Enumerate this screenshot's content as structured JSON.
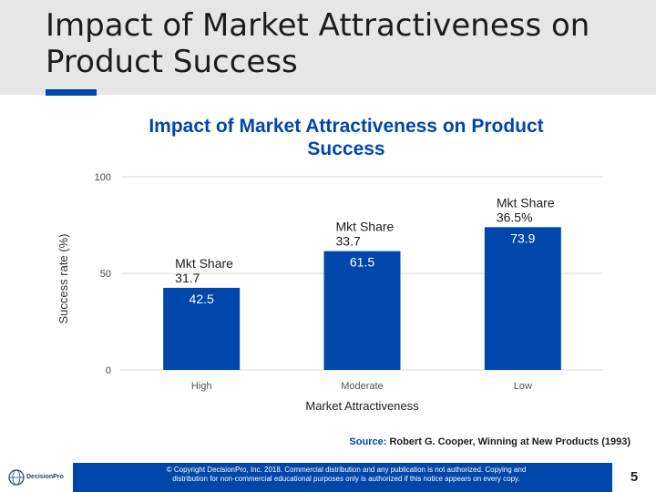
{
  "slide": {
    "title": "Impact of Market Attractiveness on Product Success",
    "page_number": "5"
  },
  "colors": {
    "bar": "#0047ab",
    "accent": "#0047ab",
    "footer": "#0047ab",
    "header_band": "#e6e6e6"
  },
  "chart_data": {
    "type": "bar",
    "title": "Impact of Market Attractiveness on Product Success",
    "xlabel": "Market Attractiveness",
    "ylabel": "Success rate (%)",
    "ylim": [
      0,
      100
    ],
    "yticks": [
      "0",
      "50",
      "100"
    ],
    "categories": [
      "High",
      "Moderate",
      "Low"
    ],
    "values": [
      42.5,
      61.5,
      73.9
    ],
    "value_labels": [
      "42.5",
      "61.5",
      "73.9"
    ],
    "annotations": [
      [
        "Mkt Share",
        "31.7"
      ],
      [
        "Mkt Share",
        "33.7"
      ],
      [
        "Mkt Share",
        "36.5%"
      ]
    ],
    "grid": true
  },
  "source": {
    "label": "Source:",
    "text": "Robert G. Cooper, Winning at New Products (1993)"
  },
  "footer": {
    "logo_text": "DecisionPro",
    "copyright_line1": "© Copyright DecisionPro, Inc. 2018. Commercial distribution and any publication is not authorized. Copying and",
    "copyright_line2": "distribution for non-commercial educational purposes only is authorized if this notice appears on every copy."
  }
}
